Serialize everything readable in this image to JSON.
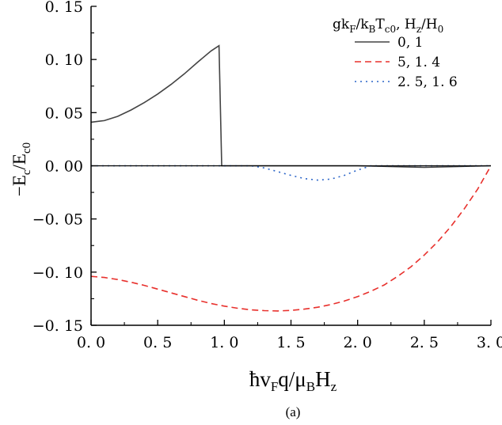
{
  "chart_data": {
    "type": "line",
    "xlabel": "ħv_Fq/μ_BH_z",
    "ylabel": "−E_c/E_c0",
    "xlim": [
      0.0,
      3.0
    ],
    "ylim": [
      -0.15,
      0.15
    ],
    "x_ticks": [
      0.0,
      0.5,
      1.0,
      1.5,
      2.0,
      2.5,
      3.0
    ],
    "x_tick_labels": [
      "0. 0",
      "0. 5",
      "1. 0",
      "1. 5",
      "2. 0",
      "2. 5",
      "3. 0"
    ],
    "y_ticks": [
      0.15,
      0.1,
      0.05,
      0.0,
      -0.05,
      -0.1,
      -0.15
    ],
    "y_tick_labels": [
      "0. 15",
      "0. 10",
      "0. 05",
      "0. 00",
      "−0. 05",
      "−0. 10",
      "−0. 15"
    ],
    "legend": {
      "title": "gk_F/k_BT_c0, H_z/H_0",
      "placement": "top-right"
    },
    "series": [
      {
        "name": "0, 1",
        "color": "#444444",
        "style": "solid",
        "x": [
          0.0,
          0.1,
          0.2,
          0.3,
          0.4,
          0.5,
          0.6,
          0.7,
          0.8,
          0.9,
          0.96,
          0.98,
          1.0,
          1.5,
          2.0,
          2.5,
          3.0
        ],
        "y": [
          0.041,
          0.0425,
          0.0465,
          0.0525,
          0.0595,
          0.0675,
          0.0765,
          0.0865,
          0.0975,
          0.108,
          0.113,
          0.0,
          0.0,
          0.0,
          0.0,
          -0.0015,
          0.0
        ]
      },
      {
        "name": "5, 1. 4",
        "color": "#e8302c",
        "style": "dashed",
        "x": [
          0.0,
          0.1,
          0.2,
          0.3,
          0.4,
          0.5,
          0.6,
          0.7,
          0.8,
          0.9,
          1.0,
          1.1,
          1.2,
          1.3,
          1.4,
          1.5,
          1.6,
          1.7,
          1.8,
          1.9,
          2.0,
          2.1,
          2.2,
          2.3,
          2.4,
          2.5,
          2.6,
          2.7,
          2.8,
          2.9,
          2.95,
          3.0
        ],
        "y": [
          -0.104,
          -0.105,
          -0.107,
          -0.1095,
          -0.1125,
          -0.116,
          -0.1195,
          -0.123,
          -0.1265,
          -0.1295,
          -0.132,
          -0.134,
          -0.1355,
          -0.1362,
          -0.1365,
          -0.136,
          -0.1348,
          -0.133,
          -0.1305,
          -0.1272,
          -0.123,
          -0.118,
          -0.112,
          -0.104,
          -0.095,
          -0.084,
          -0.0715,
          -0.057,
          -0.0405,
          -0.022,
          -0.011,
          0.0
        ]
      },
      {
        "name": "2. 5, 1. 6",
        "color": "#2a64c8",
        "style": "dotted",
        "x": [
          0.0,
          0.5,
          1.0,
          1.2,
          1.3,
          1.4,
          1.5,
          1.6,
          1.7,
          1.8,
          1.9,
          2.0,
          2.1,
          2.5,
          3.0
        ],
        "y": [
          0.0,
          0.0,
          0.0,
          0.0,
          -0.002,
          -0.0055,
          -0.009,
          -0.012,
          -0.0135,
          -0.0125,
          -0.009,
          -0.004,
          0.0,
          0.0,
          0.0
        ]
      }
    ]
  },
  "caption": "(a)"
}
